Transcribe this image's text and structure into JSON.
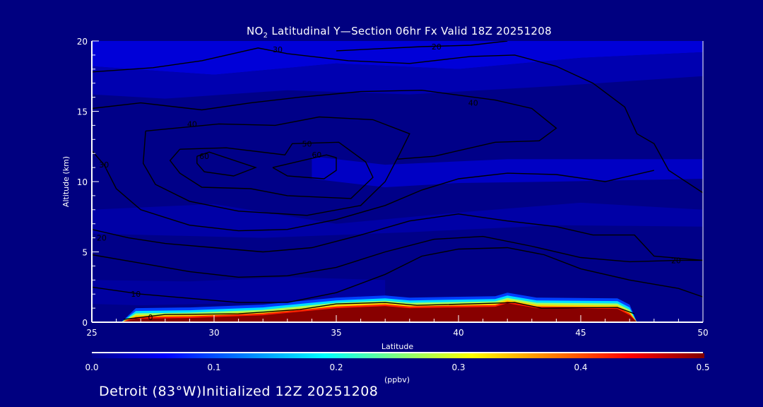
{
  "chart_data": {
    "type": "heatmap",
    "subtype": "filled contour with line contours",
    "title_main": "NO",
    "title_sub": "2",
    "title_rest": " Latitudinal Y—Section 06hr  Fx Valid 18Z 20251208",
    "xlabel": "Latitude",
    "ylabel": "Altitude (km)",
    "xlim": [
      25,
      50
    ],
    "ylim": [
      0,
      20
    ],
    "x_ticks": [
      "25",
      "30",
      "35",
      "40",
      "45",
      "50"
    ],
    "y_ticks": [
      "0",
      "5",
      "10",
      "15",
      "20"
    ],
    "colorbar": {
      "label": "(ppbv)",
      "range": [
        0.0,
        0.5
      ],
      "ticks": [
        "0.0",
        "0.1",
        "0.2",
        "0.3",
        "0.4",
        "0.5"
      ],
      "colormap": "jet"
    },
    "high_concentration_region": {
      "value_ppbv": 0.5,
      "top_edge": [
        [
          26.2,
          0
        ],
        [
          26.8,
          0.25
        ],
        [
          29,
          0.3
        ],
        [
          32,
          0.5
        ],
        [
          33.5,
          0.75
        ],
        [
          35,
          1.0
        ],
        [
          37,
          1.15
        ],
        [
          38,
          1.0
        ],
        [
          41.5,
          1.1
        ],
        [
          42,
          1.35
        ],
        [
          43.2,
          1.0
        ],
        [
          46.5,
          0.95
        ],
        [
          47,
          0.5
        ],
        [
          47.3,
          0
        ]
      ]
    },
    "contours": [
      {
        "label": "60",
        "label_at": [
          29.6,
          11.8
        ],
        "points": [
          [
            29.3,
            11.8
          ],
          [
            29.8,
            12.1
          ],
          [
            31.7,
            11.0
          ],
          [
            30.8,
            10.4
          ],
          [
            29.6,
            10.7
          ],
          [
            29.3,
            11.3
          ],
          [
            29.3,
            11.8
          ]
        ]
      },
      {
        "label": "60",
        "label_at": [
          34.2,
          11.9
        ],
        "points": [
          [
            32.4,
            11.0
          ],
          [
            34.6,
            11.9
          ],
          [
            35.0,
            11.7
          ],
          [
            35.0,
            10.8
          ],
          [
            34.5,
            10.2
          ],
          [
            33.0,
            10.4
          ],
          [
            32.4,
            11.0
          ]
        ]
      },
      {
        "label": "50",
        "label_at": [
          33.8,
          12.7
        ],
        "points": [
          [
            28.6,
            12.3
          ],
          [
            30.5,
            12.4
          ],
          [
            32.9,
            11.9
          ],
          [
            33.2,
            12.7
          ],
          [
            35.1,
            12.8
          ],
          [
            36.2,
            11.4
          ],
          [
            36.5,
            10.3
          ],
          [
            35.6,
            8.8
          ],
          [
            33.0,
            9.0
          ],
          [
            31.5,
            9.5
          ],
          [
            29.5,
            9.6
          ],
          [
            28.6,
            10.6
          ],
          [
            28.2,
            11.5
          ],
          [
            28.6,
            12.3
          ]
        ]
      },
      {
        "label": "40",
        "label_at": [
          29.1,
          14.1
        ],
        "points": [
          [
            27.2,
            13.6
          ],
          [
            30.2,
            14.1
          ],
          [
            32.5,
            14.0
          ],
          [
            34.3,
            14.6
          ],
          [
            36.5,
            14.4
          ],
          [
            38.0,
            13.4
          ],
          [
            37.6,
            12.0
          ],
          [
            37.0,
            10.0
          ],
          [
            36.0,
            8.3
          ],
          [
            33.8,
            7.6
          ],
          [
            31.0,
            7.9
          ],
          [
            29.0,
            8.6
          ],
          [
            27.6,
            9.8
          ],
          [
            27.1,
            11.3
          ],
          [
            27.2,
            13.6
          ]
        ]
      },
      {
        "label": "40",
        "label_at": [
          40.6,
          15.6
        ],
        "points": [
          [
            25,
            15.2
          ],
          [
            27,
            15.6
          ],
          [
            29.5,
            15.1
          ],
          [
            31.5,
            15.6
          ],
          [
            33.5,
            16.0
          ],
          [
            36,
            16.4
          ],
          [
            38.5,
            16.5
          ],
          [
            41.5,
            15.8
          ],
          [
            43,
            15.2
          ],
          [
            44,
            13.8
          ],
          [
            43.3,
            12.9
          ],
          [
            41.5,
            12.8
          ],
          [
            39,
            11.8
          ],
          [
            37.5,
            11.6
          ]
        ]
      },
      {
        "label": "30",
        "label_at": [
          32.6,
          19.4
        ],
        "points": [
          [
            25,
            17.8
          ],
          [
            27.5,
            18.1
          ],
          [
            29.5,
            18.6
          ],
          [
            31.8,
            19.5
          ],
          [
            33,
            19.1
          ],
          [
            35.5,
            18.6
          ],
          [
            38,
            18.4
          ],
          [
            40.5,
            18.9
          ],
          [
            42.3,
            19.0
          ],
          [
            44,
            18.2
          ],
          [
            45.5,
            17.0
          ],
          [
            46.8,
            15.3
          ],
          [
            47.3,
            13.4
          ],
          [
            48.0,
            12.7
          ],
          [
            48.6,
            10.8
          ],
          [
            50,
            9.2
          ]
        ]
      },
      {
        "label": "30",
        "label_at": [
          25.5,
          11.2
        ],
        "points": [
          [
            25,
            12.2
          ],
          [
            25.5,
            11.2
          ],
          [
            26.0,
            9.5
          ],
          [
            27.0,
            8.0
          ],
          [
            29,
            6.9
          ],
          [
            31,
            6.5
          ],
          [
            33,
            6.6
          ],
          [
            35,
            7.3
          ],
          [
            37,
            8.3
          ],
          [
            38.5,
            9.4
          ],
          [
            40,
            10.2
          ],
          [
            42,
            10.6
          ],
          [
            44,
            10.5
          ],
          [
            46,
            10.0
          ],
          [
            48,
            10.8
          ]
        ]
      },
      {
        "label": "20",
        "label_at": [
          39.1,
          19.6
        ],
        "points": [
          [
            35,
            19.3
          ],
          [
            38.5,
            19.6
          ],
          [
            40.5,
            19.7
          ],
          [
            42,
            20
          ]
        ]
      },
      {
        "label": "20",
        "label_at": [
          25.4,
          6.0
        ],
        "points": [
          [
            25,
            6.6
          ],
          [
            26.5,
            6.0
          ],
          [
            28,
            5.6
          ],
          [
            30,
            5.3
          ],
          [
            32,
            5.0
          ],
          [
            34,
            5.3
          ],
          [
            36,
            6.2
          ],
          [
            38,
            7.2
          ],
          [
            40,
            7.7
          ],
          [
            42,
            7.2
          ],
          [
            44,
            6.8
          ],
          [
            45.5,
            6.2
          ],
          [
            47.2,
            6.2
          ],
          [
            48,
            4.7
          ],
          [
            50,
            4.4
          ]
        ]
      },
      {
        "label": "20",
        "label_at": [
          48.9,
          4.4
        ],
        "points": [
          [
            25,
            4.8
          ],
          [
            27,
            4.2
          ],
          [
            29,
            3.6
          ],
          [
            31,
            3.2
          ],
          [
            33,
            3.3
          ],
          [
            35,
            3.9
          ],
          [
            37,
            5.0
          ],
          [
            39,
            5.9
          ],
          [
            41,
            6.1
          ],
          [
            43,
            5.4
          ],
          [
            45,
            4.6
          ],
          [
            47,
            4.3
          ],
          [
            49,
            4.4
          ],
          [
            50,
            4.4
          ]
        ]
      },
      {
        "label": "10",
        "label_at": [
          26.8,
          2.0
        ],
        "points": [
          [
            25,
            2.5
          ],
          [
            27,
            2.0
          ],
          [
            29,
            1.7
          ],
          [
            31,
            1.4
          ],
          [
            33,
            1.4
          ],
          [
            35,
            2.1
          ],
          [
            37,
            3.4
          ],
          [
            38.5,
            4.7
          ],
          [
            40,
            5.2
          ],
          [
            42,
            5.3
          ],
          [
            43.5,
            4.8
          ],
          [
            45,
            3.8
          ],
          [
            47,
            3.0
          ],
          [
            49,
            2.4
          ],
          [
            50,
            1.8
          ]
        ]
      },
      {
        "label": "0",
        "label_at": [
          27.4,
          0.35
        ],
        "points": [
          [
            26.3,
            0.2
          ],
          [
            28,
            0.55
          ],
          [
            31,
            0.6
          ],
          [
            33.5,
            0.9
          ],
          [
            35,
            1.3
          ],
          [
            37,
            1.4
          ],
          [
            38.3,
            1.2
          ],
          [
            41.5,
            1.35
          ],
          [
            42.3,
            1.4
          ],
          [
            43.4,
            1.0
          ],
          [
            46.5,
            1.05
          ],
          [
            47.2,
            0.6
          ]
        ]
      }
    ]
  },
  "footer": {
    "text": "Detroit (83°W)Initialized 12Z 20251208"
  }
}
